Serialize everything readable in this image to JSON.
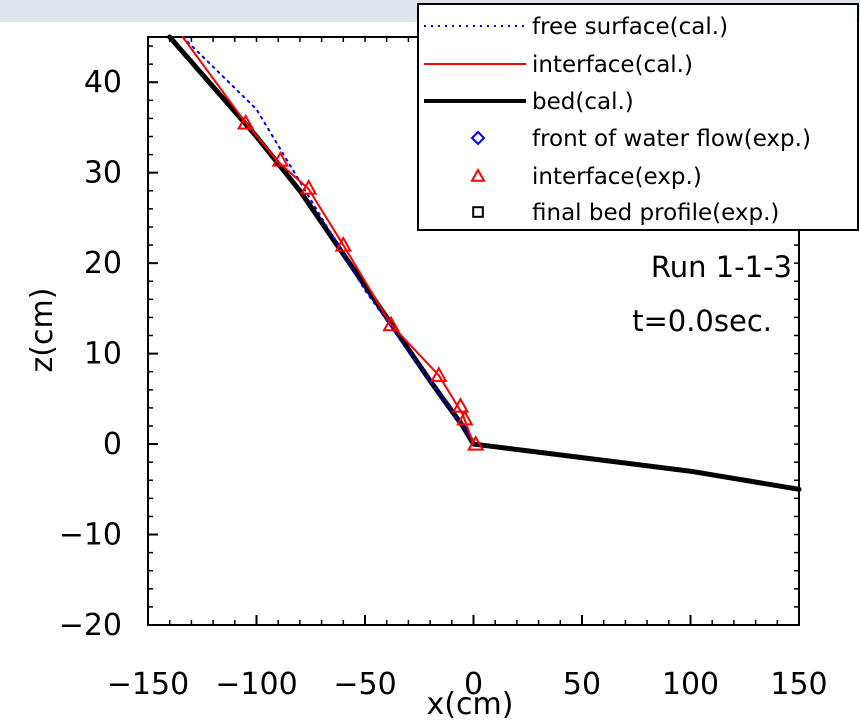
{
  "chart_data": {
    "type": "line",
    "xlabel": "x(cm)",
    "ylabel": "z(cm)",
    "xlim": [
      -150,
      150
    ],
    "ylim": [
      -20,
      45
    ],
    "xticks": [
      -150,
      -100,
      -50,
      0,
      50,
      100,
      150
    ],
    "yticks": [
      -20,
      -10,
      0,
      10,
      20,
      30,
      40
    ],
    "xtick_labels": [
      "−150",
      "−100",
      "−50",
      "0",
      "50",
      "100",
      "150"
    ],
    "ytick_labels": [
      "−20",
      "−10",
      "0",
      "10",
      "20",
      "30",
      "40"
    ],
    "grid": false,
    "legend_position": "top-right",
    "annotations": [
      "Run 1-1-3",
      "t=0.0sec."
    ],
    "series": [
      {
        "name": "free surface(cal.)",
        "style": "dotted",
        "color": "#0000ff",
        "x": [
          -134,
          -100,
          -50,
          0
        ],
        "y": [
          45,
          37,
          17,
          0.3
        ]
      },
      {
        "name": "interface(cal.)",
        "style": "solid",
        "color": "#ff0000",
        "x": [
          -134,
          -105,
          -90,
          -76,
          -60,
          -38,
          -16,
          -5,
          0
        ],
        "y": [
          45,
          35.5,
          31.2,
          28.2,
          22,
          13.2,
          7.6,
          3.3,
          0
        ]
      },
      {
        "name": "bed(cal.)",
        "style": "thick",
        "color": "#000000",
        "x": [
          -140,
          -120,
          -100,
          -80,
          -60,
          -40,
          -20,
          -5,
          0,
          50,
          100,
          150
        ],
        "y": [
          45,
          39.5,
          34,
          28,
          21,
          14,
          7,
          2,
          0,
          -1.5,
          -3,
          -5
        ]
      },
      {
        "name": "front of water flow(exp.)",
        "style": "diamond",
        "color": "#0000ff",
        "x": [],
        "y": []
      },
      {
        "name": "interface(exp.)",
        "style": "triangle",
        "color": "#ff0000",
        "x": [
          -105,
          -89,
          -76,
          -60,
          -38,
          -16,
          -6,
          -4,
          1
        ],
        "y": [
          35.5,
          31.4,
          28.3,
          22,
          13.2,
          7.6,
          4.2,
          2.8,
          0
        ]
      },
      {
        "name": "final bed profile(exp.)",
        "style": "square",
        "color": "#000000",
        "x": [],
        "y": []
      }
    ]
  }
}
